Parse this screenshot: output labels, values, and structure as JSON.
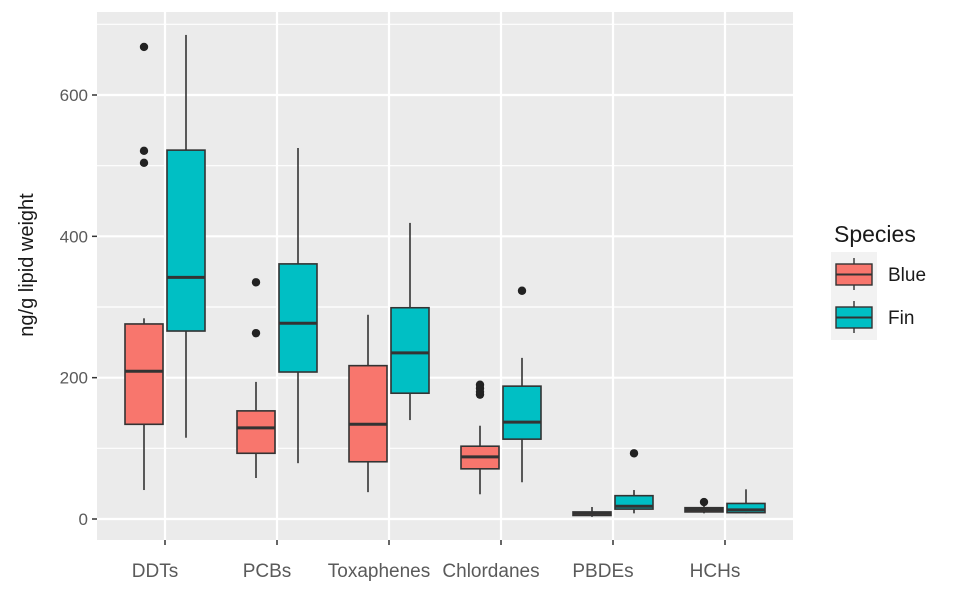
{
  "chart_data": {
    "type": "boxplot",
    "title": "",
    "xlabel": "",
    "ylabel": "ng/g lipid weight",
    "ylim": [
      -30,
      745
    ],
    "y_ticks": [
      0,
      200,
      400,
      600
    ],
    "y_tick_labels": [
      "0",
      "200",
      "400",
      "600"
    ],
    "y_minor_ticks": [
      100,
      300,
      500,
      700
    ],
    "grid": true,
    "categories": [
      "DDTs",
      "PCBs",
      "Toxaphenes",
      "Chlordanes",
      "PBDEs",
      "HCHs"
    ],
    "legend": {
      "title": "Species",
      "position": "right",
      "entries": [
        "Blue",
        "Fin"
      ]
    },
    "series": [
      {
        "name": "Blue",
        "color": "#F8766D",
        "boxes": [
          {
            "category": "DDTs",
            "whisker_low": 41,
            "q1": 134,
            "median": 209,
            "q3": 276,
            "whisker_high": 284,
            "outliers": [
              504,
              521,
              668
            ]
          },
          {
            "category": "PCBs",
            "whisker_low": 58,
            "q1": 93,
            "median": 129,
            "q3": 153,
            "whisker_high": 194,
            "outliers": [
              263,
              335
            ]
          },
          {
            "category": "Toxaphenes",
            "whisker_low": 38,
            "q1": 81,
            "median": 134,
            "q3": 217,
            "whisker_high": 289,
            "outliers": []
          },
          {
            "category": "Chlordanes",
            "whisker_low": 35,
            "q1": 71,
            "median": 88,
            "q3": 103,
            "whisker_high": 132,
            "outliers": [
              176,
              180,
              185,
              190
            ]
          },
          {
            "category": "PBDEs",
            "whisker_low": 3,
            "q1": 5,
            "median": 8,
            "q3": 10,
            "whisker_high": 17,
            "outliers": []
          },
          {
            "category": "HCHs",
            "whisker_low": 8,
            "q1": 10,
            "median": 13,
            "q3": 16,
            "whisker_high": 19,
            "outliers": [
              24
            ]
          }
        ]
      },
      {
        "name": "Fin",
        "color": "#00BFC4",
        "boxes": [
          {
            "category": "DDTs",
            "whisker_low": 115,
            "q1": 266,
            "median": 342,
            "q3": 522,
            "whisker_high": 685,
            "outliers": []
          },
          {
            "category": "PCBs",
            "whisker_low": 79,
            "q1": 208,
            "median": 277,
            "q3": 361,
            "whisker_high": 525,
            "outliers": []
          },
          {
            "category": "Toxaphenes",
            "whisker_low": 140,
            "q1": 178,
            "median": 235,
            "q3": 299,
            "whisker_high": 419,
            "outliers": []
          },
          {
            "category": "Chlordanes",
            "whisker_low": 52,
            "q1": 113,
            "median": 137,
            "q3": 188,
            "whisker_high": 228,
            "outliers": [
              323
            ]
          },
          {
            "category": "PBDEs",
            "whisker_low": 8,
            "q1": 14,
            "median": 18,
            "q3": 33,
            "whisker_high": 41,
            "outliers": [
              93
            ]
          },
          {
            "category": "HCHs",
            "whisker_low": 8,
            "q1": 9,
            "median": 13,
            "q3": 22,
            "whisker_high": 42,
            "outliers": []
          }
        ]
      }
    ],
    "colors": {
      "panel_background": "#EBEBEB",
      "grid": "#FFFFFF",
      "box_outline": "#333333",
      "outlier": "#222222"
    }
  }
}
